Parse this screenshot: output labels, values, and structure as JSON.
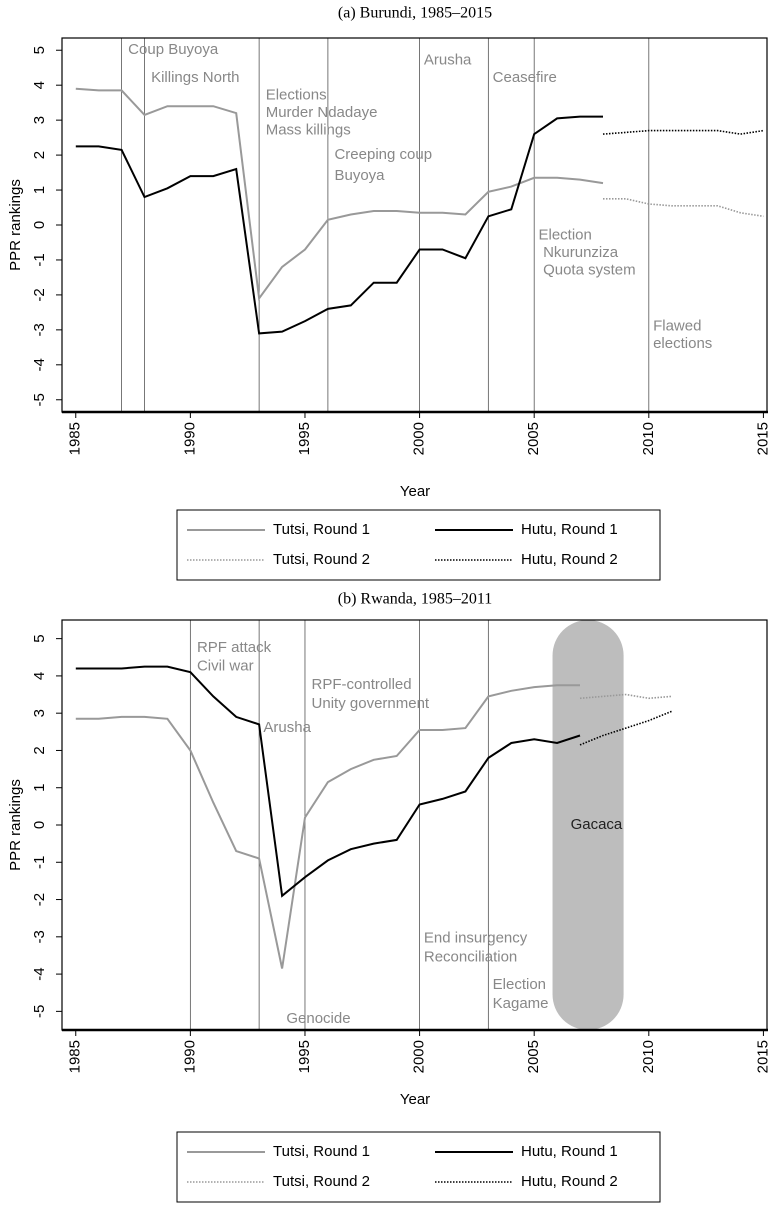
{
  "chart_data": [
    {
      "type": "line",
      "title": "(a) Burundi, 1985–2015",
      "xlabel": "Year",
      "ylabel": "PPR rankings",
      "x": [
        1985,
        1986,
        1987,
        1988,
        1989,
        1990,
        1991,
        1992,
        1993,
        1994,
        1995,
        1996,
        1997,
        1998,
        1999,
        2000,
        2001,
        2002,
        2003,
        2004,
        2005,
        2006,
        2007,
        2008,
        2009,
        2010,
        2011,
        2012,
        2013,
        2014,
        2015
      ],
      "series": [
        {
          "name": "Tutsi, Round 1",
          "color": "#999999",
          "style": "solid",
          "values": [
            3.9,
            3.85,
            3.85,
            3.15,
            3.4,
            3.4,
            3.4,
            3.2,
            -2.1,
            -1.2,
            -0.7,
            0.15,
            0.3,
            0.4,
            0.4,
            0.35,
            0.35,
            0.3,
            0.95,
            1.1,
            1.35,
            1.35,
            1.3,
            1.2,
            null,
            null,
            null,
            null,
            null,
            null,
            null
          ]
        },
        {
          "name": "Hutu, Round 1",
          "color": "#000000",
          "style": "solid",
          "values": [
            2.25,
            2.25,
            2.15,
            0.8,
            1.05,
            1.4,
            1.4,
            1.6,
            -3.1,
            -3.05,
            -2.75,
            -2.4,
            -2.3,
            -1.65,
            -1.65,
            -0.7,
            -0.7,
            -0.95,
            0.25,
            0.45,
            2.6,
            3.05,
            3.1,
            3.1,
            null,
            null,
            null,
            null,
            null,
            null,
            null
          ]
        },
        {
          "name": "Tutsi, Round 2",
          "color": "#999999",
          "style": "dotted",
          "values": [
            null,
            null,
            null,
            null,
            null,
            null,
            null,
            null,
            null,
            null,
            null,
            null,
            null,
            null,
            null,
            null,
            null,
            null,
            null,
            null,
            null,
            null,
            null,
            0.75,
            0.75,
            0.6,
            0.55,
            0.55,
            0.55,
            0.35,
            0.25
          ]
        },
        {
          "name": "Hutu, Round 2",
          "color": "#000000",
          "style": "dotted",
          "values": [
            null,
            null,
            null,
            null,
            null,
            null,
            null,
            null,
            null,
            null,
            null,
            null,
            null,
            null,
            null,
            null,
            null,
            null,
            null,
            null,
            null,
            null,
            null,
            2.6,
            2.65,
            2.7,
            2.7,
            2.7,
            2.7,
            2.6,
            2.7
          ]
        }
      ],
      "xlim": [
        1984.4,
        2015.2
      ],
      "ylim": [
        -5.35,
        5.35
      ],
      "xticks": [
        1985,
        1990,
        1995,
        2000,
        2005,
        2010,
        2015
      ],
      "yticks": [
        -5,
        -4,
        -3,
        -2,
        -1,
        0,
        1,
        2,
        3,
        4,
        5
      ],
      "vlines": [
        1987,
        1988,
        1993,
        1996,
        2000,
        2003,
        2005,
        2010
      ],
      "annotations": [
        "Coup Buyoya",
        "Killings North",
        "Elections",
        "Murder Ndadaye",
        "Mass killings",
        "Creeping coup",
        "Buyoya",
        "Arusha",
        "Ceasefire",
        "Election",
        "Nkurunziza",
        "Quota system",
        "Flawed",
        "elections"
      ]
    },
    {
      "type": "line",
      "title": "(b) Rwanda, 1985–2011",
      "xlabel": "Year",
      "ylabel": "PPR rankings",
      "x": [
        1985,
        1986,
        1987,
        1988,
        1989,
        1990,
        1991,
        1992,
        1993,
        1994,
        1995,
        1996,
        1997,
        1998,
        1999,
        2000,
        2001,
        2002,
        2003,
        2004,
        2005,
        2006,
        2007,
        2008,
        2009,
        2010,
        2011,
        2012,
        2013,
        2014,
        2015
      ],
      "series": [
        {
          "name": "Tutsi, Round 1",
          "color": "#999999",
          "style": "solid",
          "values": [
            2.85,
            2.85,
            2.9,
            2.9,
            2.85,
            2.0,
            0.6,
            -0.7,
            -0.9,
            -3.85,
            0.2,
            1.15,
            1.5,
            1.75,
            1.85,
            2.55,
            2.55,
            2.6,
            3.45,
            3.6,
            3.7,
            3.75,
            3.75,
            null,
            null,
            null,
            null,
            null,
            null,
            null,
            null
          ]
        },
        {
          "name": "Hutu, Round 1",
          "color": "#000000",
          "style": "solid",
          "values": [
            4.2,
            4.2,
            4.2,
            4.25,
            4.25,
            4.1,
            3.45,
            2.9,
            2.7,
            -1.9,
            -1.4,
            -0.95,
            -0.65,
            -0.5,
            -0.4,
            0.55,
            0.7,
            0.9,
            1.8,
            2.2,
            2.3,
            2.2,
            2.4,
            null,
            null,
            null,
            null,
            null,
            null,
            null,
            null
          ]
        },
        {
          "name": "Tutsi, Round 2",
          "color": "#999999",
          "style": "dotted",
          "values": [
            null,
            null,
            null,
            null,
            null,
            null,
            null,
            null,
            null,
            null,
            null,
            null,
            null,
            null,
            null,
            null,
            null,
            null,
            null,
            null,
            null,
            null,
            3.4,
            3.45,
            3.5,
            3.4,
            3.45,
            null,
            null,
            null,
            null
          ]
        },
        {
          "name": "Hutu, Round 2",
          "color": "#000000",
          "style": "dotted",
          "values": [
            null,
            null,
            null,
            null,
            null,
            null,
            null,
            null,
            null,
            null,
            null,
            null,
            null,
            null,
            null,
            null,
            null,
            null,
            null,
            null,
            null,
            null,
            2.15,
            2.4,
            2.6,
            2.8,
            3.05,
            null,
            null,
            null,
            null
          ]
        }
      ],
      "xlim": [
        1984.4,
        2015.2
      ],
      "ylim": [
        -5.5,
        5.5
      ],
      "xticks": [
        1985,
        1990,
        1995,
        2000,
        2005,
        2010,
        2015
      ],
      "yticks": [
        -5,
        -4,
        -3,
        -2,
        -1,
        0,
        1,
        2,
        3,
        4,
        5
      ],
      "vlines": [
        1990,
        1993,
        1995,
        2000,
        2003
      ],
      "annotations": [
        "RPF attack",
        "Civil war",
        "Arusha",
        "RPF-controlled",
        "Unity government",
        "Gacaca",
        "End insurgency",
        "Reconciliation",
        "Election",
        "Kagame",
        "Genocide"
      ]
    }
  ]
}
